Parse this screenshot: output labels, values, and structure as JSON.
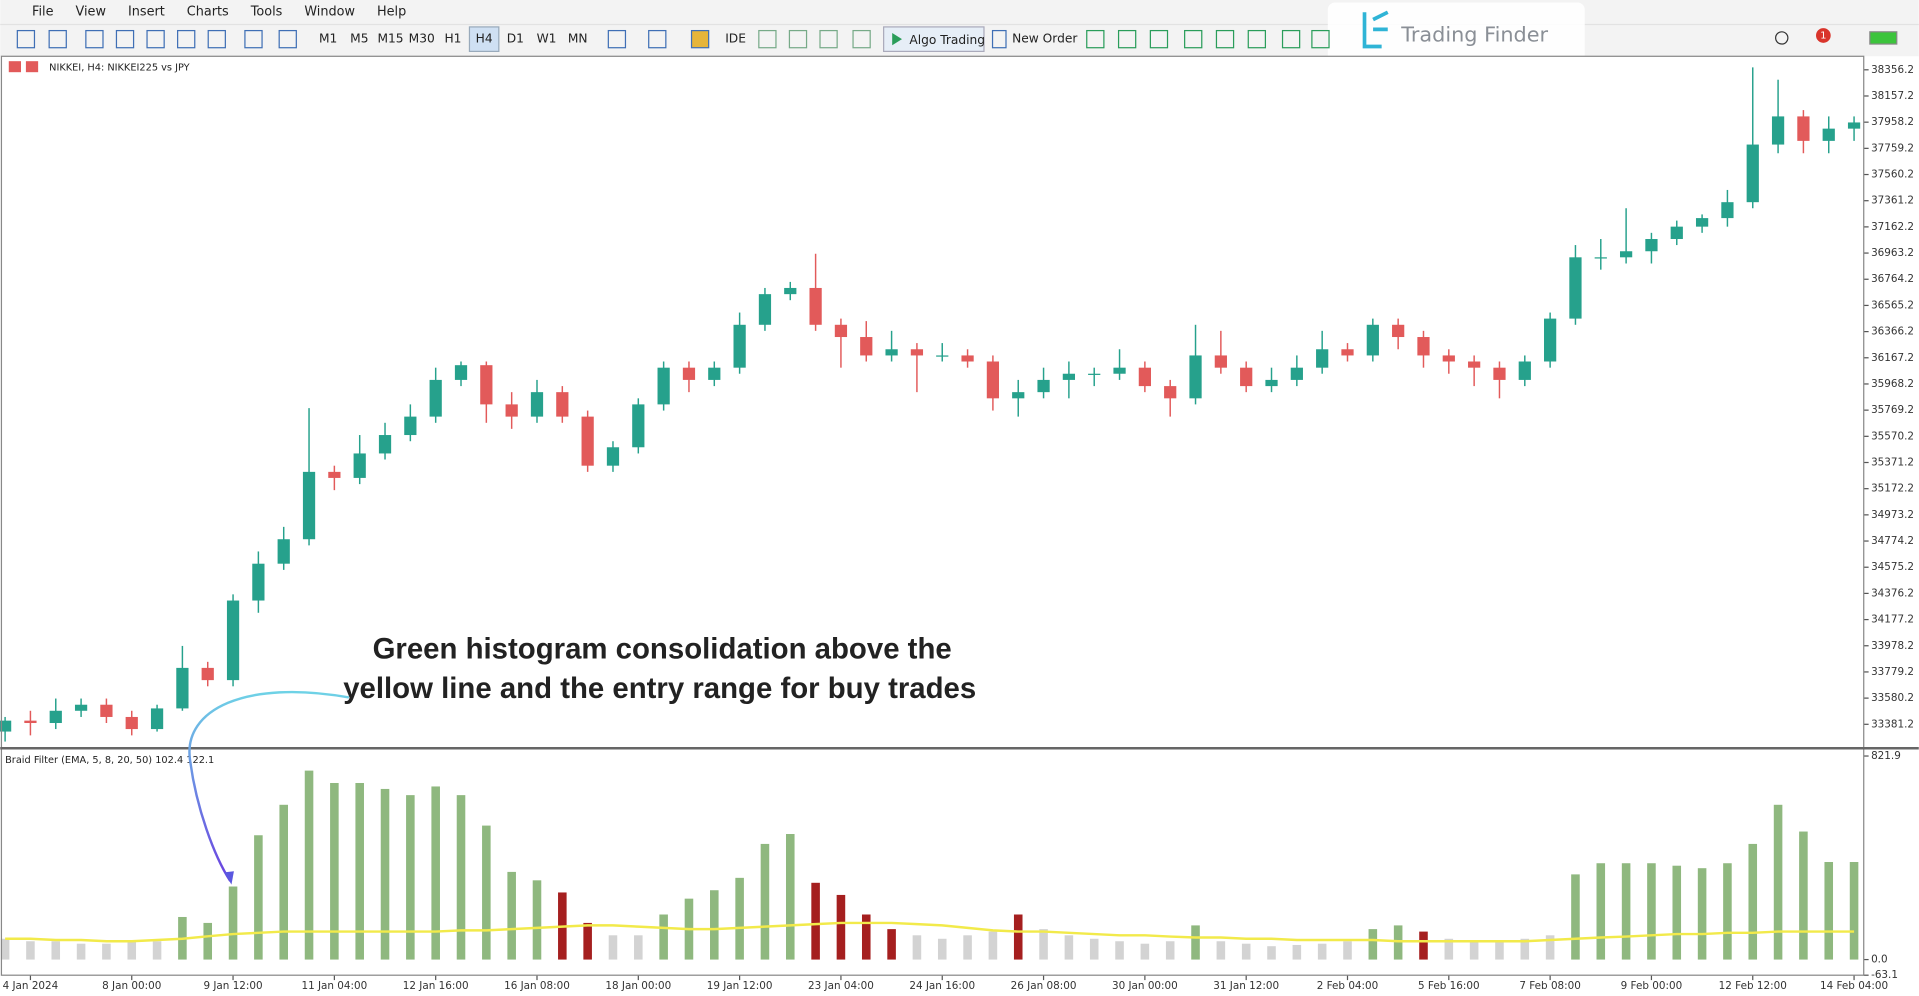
{
  "menu": [
    "File",
    "View",
    "Insert",
    "Charts",
    "Tools",
    "Window",
    "Help"
  ],
  "toolbar": {
    "timeframes": [
      "M1",
      "M5",
      "M15",
      "M30",
      "H1",
      "H4",
      "D1",
      "W1",
      "MN"
    ],
    "ide": "IDE",
    "algo": "Algo Trading",
    "order": "New Order",
    "badge": "1"
  },
  "watermark": "Trading Finder",
  "annotation": [
    "Green histogram consolidation above the",
    "yellow line and the entry range for buy trades"
  ],
  "chart_data": [
    {
      "type": "candlestick",
      "title": "NIKKEI, H4: NIKKEI225 vs JPY",
      "up_color": "#26a18c",
      "down_color": "#e25a5a",
      "categories": [
        null,
        "4 Jan 2024",
        null,
        null,
        null,
        "8 Jan 00:00",
        null,
        null,
        null,
        "9 Jan 12:00",
        null,
        null,
        null,
        "11 Jan 04:00",
        null,
        null,
        null,
        "12 Jan 16:00",
        null,
        null,
        null,
        "16 Jan 08:00",
        null,
        null,
        null,
        "18 Jan 00:00",
        null,
        null,
        null,
        "19 Jan 12:00",
        null,
        null,
        null,
        "23 Jan 04:00",
        null,
        null,
        null,
        "24 Jan 16:00",
        null,
        null,
        null,
        "26 Jan 08:00",
        null,
        null,
        null,
        "30 Jan 00:00",
        null,
        null,
        null,
        "31 Jan 12:00",
        null,
        null,
        null,
        "2 Feb 04:00",
        null,
        null,
        null,
        "5 Feb 16:00",
        null,
        null,
        null,
        "7 Feb 08:00",
        null,
        null,
        null,
        "9 Feb 00:00",
        null,
        null,
        null,
        "12 Feb 12:00",
        null,
        null,
        null,
        "14 Feb 04:00"
      ],
      "open": [
        33326,
        33409,
        33391,
        33484,
        33530,
        33437,
        33345,
        33502,
        33810,
        33717,
        34322,
        34602,
        34788,
        35300,
        35254,
        35440,
        35580,
        35720,
        35999,
        36111,
        35813,
        35720,
        35906,
        35720,
        35347,
        35487,
        35813,
        36092,
        35999,
        36092,
        36418,
        36651,
        36698,
        36418,
        36325,
        36185,
        36232,
        36185,
        36185,
        36139,
        35859,
        35906,
        35999,
        36046,
        36046,
        36092,
        35952,
        35859,
        36185,
        36092,
        35952,
        35999,
        36092,
        36232,
        36185,
        36418,
        36325,
        36185,
        36139,
        36092,
        35999,
        36139,
        36465,
        36931,
        36931,
        36977,
        37070,
        37164,
        37229,
        37350,
        37788,
        38002,
        37816,
        37909
      ],
      "high": [
        33437,
        33484,
        33577,
        33577,
        33577,
        33484,
        33530,
        33977,
        33856,
        34369,
        34695,
        34882,
        35785,
        35347,
        35580,
        35673,
        35813,
        36092,
        36139,
        36139,
        35906,
        35999,
        35952,
        35766,
        35533,
        35859,
        36139,
        36139,
        36139,
        36511,
        36698,
        36744,
        36958,
        36465,
        36446,
        36372,
        36279,
        36279,
        36232,
        36185,
        35999,
        36092,
        36139,
        36092,
        36232,
        36139,
        35999,
        36418,
        36372,
        36139,
        36092,
        36185,
        36372,
        36279,
        36465,
        36465,
        36372,
        36232,
        36185,
        36139,
        36185,
        36511,
        37024,
        37070,
        37304,
        37117,
        37210,
        37257,
        37443,
        38375,
        38281,
        38050,
        38002,
        38002
      ],
      "low": [
        33250,
        33297,
        33345,
        33437,
        33391,
        33297,
        33326,
        33484,
        33670,
        33670,
        34229,
        34555,
        34741,
        35161,
        35207,
        35394,
        35533,
        35673,
        35952,
        35673,
        35627,
        35673,
        35673,
        35300,
        35300,
        35440,
        35766,
        35906,
        35952,
        36046,
        36372,
        36605,
        36372,
        36092,
        36139,
        36139,
        35906,
        36139,
        36092,
        35766,
        35720,
        35859,
        35859,
        35952,
        35999,
        35906,
        35720,
        35813,
        36046,
        35906,
        35906,
        35952,
        36046,
        36139,
        36139,
        36232,
        36092,
        36046,
        35952,
        35859,
        35952,
        36092,
        36418,
        36837,
        36884,
        36884,
        37024,
        37117,
        37164,
        37304,
        37722,
        37722,
        37722,
        37816
      ],
      "close": [
        33409,
        33391,
        33484,
        33530,
        33437,
        33345,
        33502,
        33810,
        33717,
        34322,
        34602,
        34788,
        35300,
        35254,
        35440,
        35580,
        35720,
        35999,
        36111,
        35813,
        35720,
        35906,
        35720,
        35347,
        35487,
        35813,
        36092,
        35999,
        36092,
        36418,
        36651,
        36698,
        36418,
        36325,
        36185,
        36232,
        36185,
        36185,
        36139,
        35859,
        35906,
        35999,
        36046,
        36046,
        36092,
        35952,
        35859,
        36185,
        36092,
        35952,
        35999,
        36092,
        36232,
        36185,
        36418,
        36325,
        36185,
        36139,
        36092,
        35999,
        36139,
        36465,
        36931,
        36931,
        36977,
        37070,
        37164,
        37229,
        37350,
        37788,
        38002,
        37816,
        37909,
        37956
      ],
      "ylim": [
        33204,
        38459
      ],
      "yticks": [
        38356.2,
        38157.2,
        37958.2,
        37759.2,
        37560.2,
        37361.2,
        37162.2,
        36963.2,
        36764.2,
        36565.2,
        36366.2,
        36167.2,
        35968.2,
        35769.2,
        35570.2,
        35371.2,
        35172.2,
        34973.2,
        34774.2,
        34575.2,
        34376.2,
        34177.2,
        33978.2,
        33779.2,
        33580.2,
        33381.2
      ]
    },
    {
      "type": "bar",
      "title": "Braid Filter (EMA, 5, 8, 20, 50) 102.4 122.1",
      "values": [
        84,
        74,
        74,
        64,
        64,
        74,
        74,
        172,
        148,
        295,
        502,
        625,
        763,
        713,
        713,
        689,
        664,
        699,
        664,
        541,
        354,
        320,
        271,
        148,
        98,
        98,
        182,
        246,
        280,
        330,
        467,
        507,
        310,
        261,
        182,
        123,
        98,
        84,
        98,
        113,
        182,
        123,
        98,
        84,
        74,
        64,
        74,
        138,
        74,
        64,
        54,
        59,
        64,
        74,
        123,
        138,
        113,
        84,
        74,
        74,
        84,
        98,
        344,
        389,
        389,
        389,
        379,
        369,
        389,
        467,
        625,
        517,
        394,
        394
      ],
      "colors": [
        "#d3d3d3",
        "#d3d3d3",
        "#d3d3d3",
        "#d3d3d3",
        "#d3d3d3",
        "#d3d3d3",
        "#d3d3d3",
        "#8fb87f",
        "#8fb87f",
        "#8fb87f",
        "#8fb87f",
        "#8fb87f",
        "#8fb87f",
        "#8fb87f",
        "#8fb87f",
        "#8fb87f",
        "#8fb87f",
        "#8fb87f",
        "#8fb87f",
        "#8fb87f",
        "#8fb87f",
        "#8fb87f",
        "#a51f1f",
        "#a51f1f",
        "#d3d3d3",
        "#d3d3d3",
        "#8fb87f",
        "#8fb87f",
        "#8fb87f",
        "#8fb87f",
        "#8fb87f",
        "#8fb87f",
        "#a51f1f",
        "#a51f1f",
        "#a51f1f",
        "#a51f1f",
        "#d3d3d3",
        "#d3d3d3",
        "#d3d3d3",
        "#d3d3d3",
        "#a51f1f",
        "#d3d3d3",
        "#d3d3d3",
        "#d3d3d3",
        "#d3d3d3",
        "#d3d3d3",
        "#d3d3d3",
        "#8fb87f",
        "#d3d3d3",
        "#d3d3d3",
        "#d3d3d3",
        "#d3d3d3",
        "#d3d3d3",
        "#d3d3d3",
        "#8fb87f",
        "#8fb87f",
        "#a51f1f",
        "#d3d3d3",
        "#d3d3d3",
        "#d3d3d3",
        "#d3d3d3",
        "#d3d3d3",
        "#8fb87f",
        "#8fb87f",
        "#8fb87f",
        "#8fb87f",
        "#8fb87f",
        "#8fb87f",
        "#8fb87f",
        "#8fb87f",
        "#8fb87f",
        "#8fb87f",
        "#8fb87f",
        "#8fb87f"
      ],
      "line": {
        "color": "#f2ea4a",
        "values": [
          84,
          84,
          79,
          79,
          74,
          74,
          79,
          84,
          94,
          103,
          108,
          113,
          113,
          113,
          113,
          113,
          113,
          113,
          118,
          118,
          123,
          128,
          133,
          138,
          138,
          133,
          128,
          123,
          123,
          128,
          133,
          138,
          143,
          148,
          148,
          148,
          143,
          138,
          128,
          118,
          113,
          113,
          108,
          103,
          98,
          98,
          93,
          89,
          89,
          84,
          84,
          79,
          79,
          79,
          79,
          74,
          74,
          74,
          74,
          74,
          74,
          79,
          84,
          89,
          93,
          98,
          103,
          103,
          108,
          108,
          113,
          113,
          113,
          113
        ]
      },
      "ylim": [
        -63.1,
        846
      ],
      "yticks": [
        821.9,
        {
          "value": 0,
          "label": "0.0"
        },
        -63.1
      ]
    }
  ]
}
